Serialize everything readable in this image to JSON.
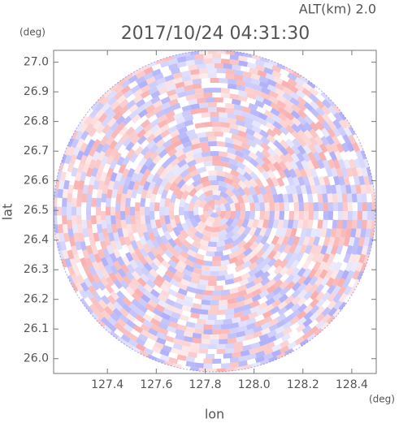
{
  "chart_data": {
    "type": "ppi",
    "title": "2017/10/24 04:31:30",
    "annotation": "ALT(km) 2.0",
    "x_label": "lon",
    "x_unit": "(deg)",
    "y_label": "lat",
    "y_unit": "(deg)",
    "xlim": [
      127.18,
      128.5
    ],
    "ylim": [
      25.95,
      27.04
    ],
    "xticks": [
      127.4,
      127.6,
      127.8,
      {
        "value": 128.0,
        "label": "128.0"
      },
      128.2,
      128.4
    ],
    "yticks": [
      {
        "value": 26.0,
        "label": "26.0"
      },
      26.1,
      26.2,
      26.3,
      26.4,
      26.5,
      26.6,
      26.7,
      26.8,
      26.9,
      {
        "value": 27.0,
        "label": "27.0"
      }
    ]
  }
}
